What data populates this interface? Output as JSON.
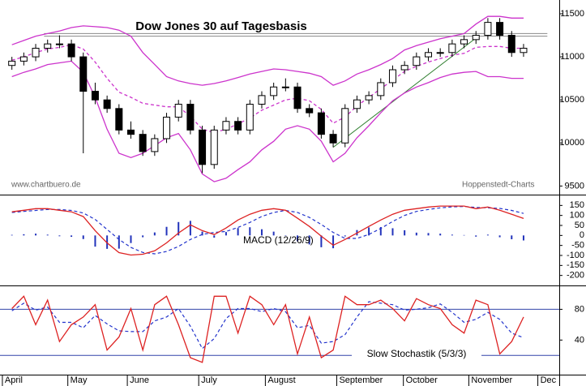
{
  "chart_data": [
    {
      "type": "candlestick",
      "title": "Dow Jones 30 auf Tagesbasis",
      "source": "www.chartbuero.de",
      "credit": "Hoppenstedt-Charts",
      "x": [
        1,
        2,
        3,
        4,
        5,
        6,
        7,
        8,
        9,
        10,
        11,
        12,
        13,
        14,
        15,
        16,
        17,
        18,
        19,
        20,
        21,
        22,
        23,
        24,
        25,
        26,
        27,
        28,
        29,
        30,
        31,
        32,
        33,
        34,
        35,
        36,
        37,
        38,
        39,
        40,
        41,
        42,
        43,
        44
      ],
      "xlim": [
        0,
        47
      ],
      "open": [
        10900,
        10950,
        11000,
        11100,
        11150,
        11150,
        11000,
        10600,
        10500,
        10400,
        10150,
        10100,
        9900,
        10050,
        10300,
        10450,
        10150,
        9750,
        10150,
        10250,
        10150,
        10450,
        10550,
        10650,
        10650,
        10400,
        10350,
        10100,
        10000,
        10400,
        10500,
        10550,
        10700,
        10850,
        10900,
        11000,
        11050,
        11050,
        11150,
        11200,
        11250,
        11400,
        11250,
        11050
      ],
      "high": [
        11000,
        11050,
        11150,
        11200,
        11250,
        11200,
        11050,
        10700,
        10550,
        10450,
        10250,
        10150,
        10100,
        10350,
        10500,
        10500,
        10200,
        10200,
        10300,
        10300,
        10500,
        10600,
        10700,
        10750,
        10700,
        10450,
        10400,
        10150,
        10450,
        10550,
        10600,
        10750,
        10900,
        10950,
        11050,
        11100,
        11100,
        11200,
        11250,
        11300,
        11450,
        11450,
        11300,
        11150
      ],
      "low": [
        10850,
        10900,
        10950,
        11050,
        11100,
        10950,
        9880,
        10450,
        10350,
        10100,
        10050,
        9850,
        9850,
        10000,
        10250,
        10100,
        9650,
        9700,
        10100,
        10100,
        10100,
        10400,
        10500,
        10600,
        10350,
        10300,
        10050,
        9950,
        9950,
        10350,
        10450,
        10500,
        10650,
        10800,
        10850,
        10950,
        11000,
        11000,
        11100,
        11150,
        11200,
        11200,
        11000,
        11000
      ],
      "close": [
        10950,
        11000,
        11100,
        11150,
        11150,
        11000,
        10600,
        10500,
        10400,
        10150,
        10100,
        9900,
        10050,
        10300,
        10450,
        10150,
        9750,
        10150,
        10250,
        10150,
        10450,
        10550,
        10650,
        10650,
        10400,
        10350,
        10100,
        10000,
        10400,
        10500,
        10550,
        10700,
        10850,
        10900,
        11000,
        11050,
        11050,
        11150,
        11200,
        11250,
        11400,
        11250,
        11050,
        11100
      ],
      "up_color": "#ffffff",
      "down_color": "#000000",
      "overlays": [
        {
          "color": "#cc33cc",
          "dashed": false,
          "values": [
            11140,
            11190,
            11240,
            11270,
            11300,
            11340,
            11360,
            11350,
            11340,
            11310,
            11240,
            11050,
            10910,
            10770,
            10720,
            10690,
            10670,
            10690,
            10720,
            10760,
            10800,
            10830,
            10860,
            10850,
            10830,
            10810,
            10770,
            10670,
            10720,
            10800,
            10850,
            10910,
            10980,
            11080,
            11130,
            11170,
            11210,
            11240,
            11270,
            11380,
            11470,
            11470,
            11450,
            11450
          ]
        },
        {
          "color": "#cc33cc",
          "dashed": true,
          "values": [
            10960,
            11000,
            11050,
            11090,
            11110,
            11140,
            11090,
            10940,
            10750,
            10590,
            10530,
            10460,
            10440,
            10420,
            10420,
            10310,
            10160,
            10120,
            10160,
            10220,
            10290,
            10380,
            10440,
            10500,
            10520,
            10490,
            10390,
            10230,
            10300,
            10430,
            10530,
            10630,
            10730,
            10830,
            10890,
            10940,
            10980,
            11020,
            11040,
            11110,
            11120,
            11120,
            11100,
            11100
          ]
        },
        {
          "color": "#cc33cc",
          "dashed": false,
          "values": [
            10770,
            10820,
            10860,
            10910,
            10930,
            10950,
            10820,
            10530,
            10160,
            9880,
            9830,
            9880,
            9970,
            10060,
            10110,
            9920,
            9640,
            9550,
            9590,
            9690,
            9780,
            9920,
            10020,
            10160,
            10200,
            10160,
            10020,
            9780,
            9880,
            10060,
            10200,
            10350,
            10490,
            10580,
            10650,
            10700,
            10760,
            10800,
            10820,
            10830,
            10770,
            10770,
            10750,
            10750
          ]
        }
      ],
      "hlines": [
        {
          "value": 11270,
          "x": [
            3.7,
            46
          ]
        },
        {
          "value": 11240,
          "x": [
            3.7,
            46
          ]
        }
      ],
      "hline_color": "#888888",
      "trendline": {
        "x": [
          28,
          40.2
        ],
        "values": [
          9950,
          11240
        ],
        "color": "#2d7d2d"
      },
      "ylim": [
        9400,
        11660
      ],
      "yticks": [
        9500,
        10000,
        10500,
        11000,
        11500
      ]
    },
    {
      "type": "macd",
      "label": "MACD (12/26/9)",
      "macd": {
        "color": "#dd2222",
        "values": [
          118,
          126,
          134,
          134,
          126,
          118,
          94,
          24,
          -37,
          -86,
          -98,
          -94,
          -77,
          -37,
          12,
          53,
          24,
          4,
          37,
          77,
          106,
          126,
          134,
          126,
          86,
          45,
          -4,
          -49,
          -20,
          12,
          45,
          77,
          106,
          126,
          134,
          142,
          147,
          147,
          147,
          134,
          142,
          126,
          106,
          85
        ]
      },
      "signal": {
        "color": "#2233cc",
        "values": [
          115,
          120,
          125,
          130,
          130,
          125,
          112,
          80,
          30,
          -20,
          -60,
          -85,
          -92,
          -80,
          -55,
          -20,
          5,
          15,
          20,
          40,
          65,
          95,
          115,
          125,
          115,
          90,
          55,
          15,
          -15,
          -15,
          5,
          35,
          70,
          100,
          120,
          130,
          138,
          143,
          145,
          140,
          138,
          135,
          125,
          110
        ]
      },
      "histogram": {
        "color": "#2233bb",
        "values": [
          3,
          6,
          9,
          4,
          -4,
          -7,
          -18,
          -56,
          -67,
          -66,
          -38,
          -9,
          15,
          43,
          67,
          73,
          19,
          -11,
          17,
          37,
          41,
          31,
          19,
          1,
          -29,
          -45,
          -59,
          -64,
          -5,
          27,
          40,
          42,
          36,
          26,
          14,
          12,
          9,
          4,
          2,
          -6,
          4,
          -9,
          -19,
          -25
        ]
      },
      "ylim": [
        -250,
        200
      ],
      "yticks": [
        150,
        100,
        50,
        0,
        -50,
        -100,
        -150,
        -200
      ]
    },
    {
      "type": "stochastic",
      "label": "Slow Stochastik (5/3/3)",
      "k": {
        "color": "#dd2222",
        "values": [
          81,
          97,
          60,
          92,
          38,
          60,
          70,
          86,
          27,
          44,
          81,
          27,
          86,
          97,
          60,
          17,
          11,
          97,
          97,
          49,
          97,
          86,
          60,
          86,
          22,
          70,
          17,
          27,
          97,
          86,
          86,
          92,
          81,
          65,
          94,
          86,
          81,
          60,
          49,
          92,
          86,
          22,
          38,
          70
        ]
      },
      "d": {
        "color": "#2233cc",
        "values": [
          78,
          88,
          79,
          83,
          63,
          63,
          56,
          72,
          61,
          52,
          51,
          51,
          65,
          70,
          81,
          58,
          29,
          42,
          68,
          81,
          81,
          77,
          81,
          77,
          56,
          59,
          36,
          38,
          47,
          70,
          90,
          88,
          86,
          79,
          80,
          82,
          87,
          76,
          63,
          67,
          76,
          67,
          49,
          43
        ]
      },
      "hlines": [
        80,
        20
      ],
      "hline_color": "#3344aa",
      "ylim": [
        -5,
        110
      ],
      "yticks": [
        40,
        80
      ],
      "xticks": [
        {
          "value": 0.2,
          "label": "April"
        },
        {
          "value": 5.7,
          "label": "May"
        },
        {
          "value": 10.7,
          "label": "June"
        },
        {
          "value": 16.7,
          "label": "July"
        },
        {
          "value": 22.3,
          "label": "August"
        },
        {
          "value": 28.3,
          "label": "September"
        },
        {
          "value": 33.9,
          "label": "October"
        },
        {
          "value": 39.4,
          "label": "November"
        },
        {
          "value": 45.2,
          "label": "Dec"
        }
      ]
    }
  ]
}
